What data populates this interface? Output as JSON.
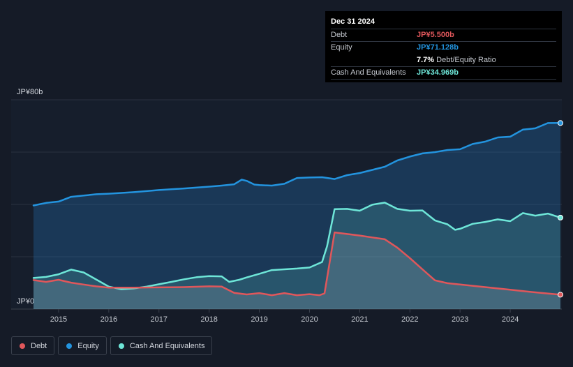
{
  "tooltip": {
    "date": "Dec 31 2024",
    "debt_label": "Debt",
    "debt_value": "JP¥5.500b",
    "equity_label": "Equity",
    "equity_value": "JP¥71.128b",
    "ratio_value": "7.7%",
    "ratio_label": "Debt/Equity Ratio",
    "cash_label": "Cash And Equivalents",
    "cash_value": "JP¥34.969b"
  },
  "legend": {
    "debt": "Debt",
    "equity": "Equity",
    "cash": "Cash And Equivalents"
  },
  "colors": {
    "debt": "#e0575b",
    "equity": "#2394df",
    "cash": "#6ee6d8",
    "background": "#151b27",
    "tooltip_bg": "#000000"
  },
  "chart_data": {
    "type": "area",
    "ylabel_top": "JP¥80b",
    "ylabel_bottom": "JP¥0",
    "ylim": [
      0,
      80
    ],
    "xlim": [
      2014.5,
      2025.0
    ],
    "grid": true,
    "legend_position": "bottom-left",
    "x_ticks": [
      {
        "v": 2015,
        "label": "2015"
      },
      {
        "v": 2016,
        "label": "2016"
      },
      {
        "v": 2017,
        "label": "2017"
      },
      {
        "v": 2018,
        "label": "2018"
      },
      {
        "v": 2019,
        "label": "2019"
      },
      {
        "v": 2020,
        "label": "2020"
      },
      {
        "v": 2021,
        "label": "2021"
      },
      {
        "v": 2022,
        "label": "2022"
      },
      {
        "v": 2023,
        "label": "2023"
      },
      {
        "v": 2024,
        "label": "2024"
      }
    ],
    "series": [
      {
        "name": "Equity",
        "color": "#2394df",
        "points": [
          [
            2014.5,
            39.6
          ],
          [
            2014.75,
            40.6
          ],
          [
            2015.0,
            41.1
          ],
          [
            2015.25,
            42.9
          ],
          [
            2015.5,
            43.4
          ],
          [
            2015.75,
            43.9
          ],
          [
            2016.0,
            44.1
          ],
          [
            2016.5,
            44.7
          ],
          [
            2017.0,
            45.5
          ],
          [
            2017.5,
            46.1
          ],
          [
            2018.0,
            46.8
          ],
          [
            2018.25,
            47.2
          ],
          [
            2018.5,
            47.7
          ],
          [
            2018.65,
            49.5
          ],
          [
            2018.75,
            49.0
          ],
          [
            2018.9,
            47.6
          ],
          [
            2019.0,
            47.4
          ],
          [
            2019.25,
            47.2
          ],
          [
            2019.5,
            47.9
          ],
          [
            2019.75,
            50.1
          ],
          [
            2020.0,
            50.3
          ],
          [
            2020.25,
            50.4
          ],
          [
            2020.5,
            49.7
          ],
          [
            2020.75,
            51.2
          ],
          [
            2021.0,
            52.0
          ],
          [
            2021.25,
            53.2
          ],
          [
            2021.5,
            54.4
          ],
          [
            2021.75,
            56.8
          ],
          [
            2022.0,
            58.3
          ],
          [
            2022.25,
            59.5
          ],
          [
            2022.5,
            60.0
          ],
          [
            2022.75,
            60.8
          ],
          [
            2023.0,
            61.1
          ],
          [
            2023.25,
            63.1
          ],
          [
            2023.5,
            64.0
          ],
          [
            2023.75,
            65.6
          ],
          [
            2024.0,
            65.9
          ],
          [
            2024.25,
            68.6
          ],
          [
            2024.5,
            69.1
          ],
          [
            2024.75,
            71.1
          ],
          [
            2025.0,
            71.128
          ]
        ]
      },
      {
        "name": "Cash And Equivalents",
        "color": "#6ee6d8",
        "points": [
          [
            2014.5,
            11.9
          ],
          [
            2014.75,
            12.3
          ],
          [
            2015.0,
            13.3
          ],
          [
            2015.25,
            15.1
          ],
          [
            2015.5,
            14.0
          ],
          [
            2015.75,
            11.3
          ],
          [
            2016.0,
            8.6
          ],
          [
            2016.25,
            7.6
          ],
          [
            2016.5,
            7.9
          ],
          [
            2016.75,
            8.6
          ],
          [
            2017.0,
            9.5
          ],
          [
            2017.25,
            10.4
          ],
          [
            2017.5,
            11.4
          ],
          [
            2017.75,
            12.2
          ],
          [
            2018.0,
            12.6
          ],
          [
            2018.25,
            12.5
          ],
          [
            2018.4,
            10.4
          ],
          [
            2018.6,
            11.2
          ],
          [
            2018.75,
            12.1
          ],
          [
            2019.0,
            13.5
          ],
          [
            2019.25,
            14.9
          ],
          [
            2019.5,
            15.2
          ],
          [
            2019.75,
            15.5
          ],
          [
            2020.0,
            15.9
          ],
          [
            2020.25,
            18.0
          ],
          [
            2020.35,
            24.0
          ],
          [
            2020.5,
            38.2
          ],
          [
            2020.75,
            38.3
          ],
          [
            2021.0,
            37.6
          ],
          [
            2021.25,
            39.9
          ],
          [
            2021.5,
            40.7
          ],
          [
            2021.75,
            38.3
          ],
          [
            2022.0,
            37.6
          ],
          [
            2022.25,
            37.7
          ],
          [
            2022.5,
            33.9
          ],
          [
            2022.75,
            32.4
          ],
          [
            2022.9,
            30.3
          ],
          [
            2023.0,
            30.7
          ],
          [
            2023.25,
            32.6
          ],
          [
            2023.5,
            33.3
          ],
          [
            2023.75,
            34.3
          ],
          [
            2024.0,
            33.6
          ],
          [
            2024.25,
            36.7
          ],
          [
            2024.5,
            35.7
          ],
          [
            2024.75,
            36.5
          ],
          [
            2025.0,
            34.969
          ]
        ]
      },
      {
        "name": "Debt",
        "color": "#e0575b",
        "points": [
          [
            2014.5,
            11.1
          ],
          [
            2014.75,
            10.4
          ],
          [
            2015.0,
            11.2
          ],
          [
            2015.25,
            10.1
          ],
          [
            2015.5,
            9.4
          ],
          [
            2015.75,
            8.7
          ],
          [
            2016.0,
            8.2
          ],
          [
            2016.5,
            8.2
          ],
          [
            2017.0,
            8.3
          ],
          [
            2017.5,
            8.4
          ],
          [
            2018.0,
            8.7
          ],
          [
            2018.25,
            8.6
          ],
          [
            2018.5,
            6.2
          ],
          [
            2018.75,
            5.6
          ],
          [
            2019.0,
            6.1
          ],
          [
            2019.25,
            5.3
          ],
          [
            2019.5,
            6.1
          ],
          [
            2019.75,
            5.3
          ],
          [
            2020.0,
            5.7
          ],
          [
            2020.2,
            5.3
          ],
          [
            2020.3,
            6.0
          ],
          [
            2020.5,
            29.3
          ],
          [
            2020.75,
            28.7
          ],
          [
            2021.0,
            28.1
          ],
          [
            2021.25,
            27.4
          ],
          [
            2021.5,
            26.7
          ],
          [
            2021.75,
            23.5
          ],
          [
            2022.0,
            19.5
          ],
          [
            2022.25,
            15.2
          ],
          [
            2022.5,
            11.0
          ],
          [
            2022.75,
            9.9
          ],
          [
            2023.0,
            9.4
          ],
          [
            2023.5,
            8.4
          ],
          [
            2024.0,
            7.4
          ],
          [
            2024.5,
            6.4
          ],
          [
            2025.0,
            5.5
          ]
        ]
      }
    ]
  }
}
